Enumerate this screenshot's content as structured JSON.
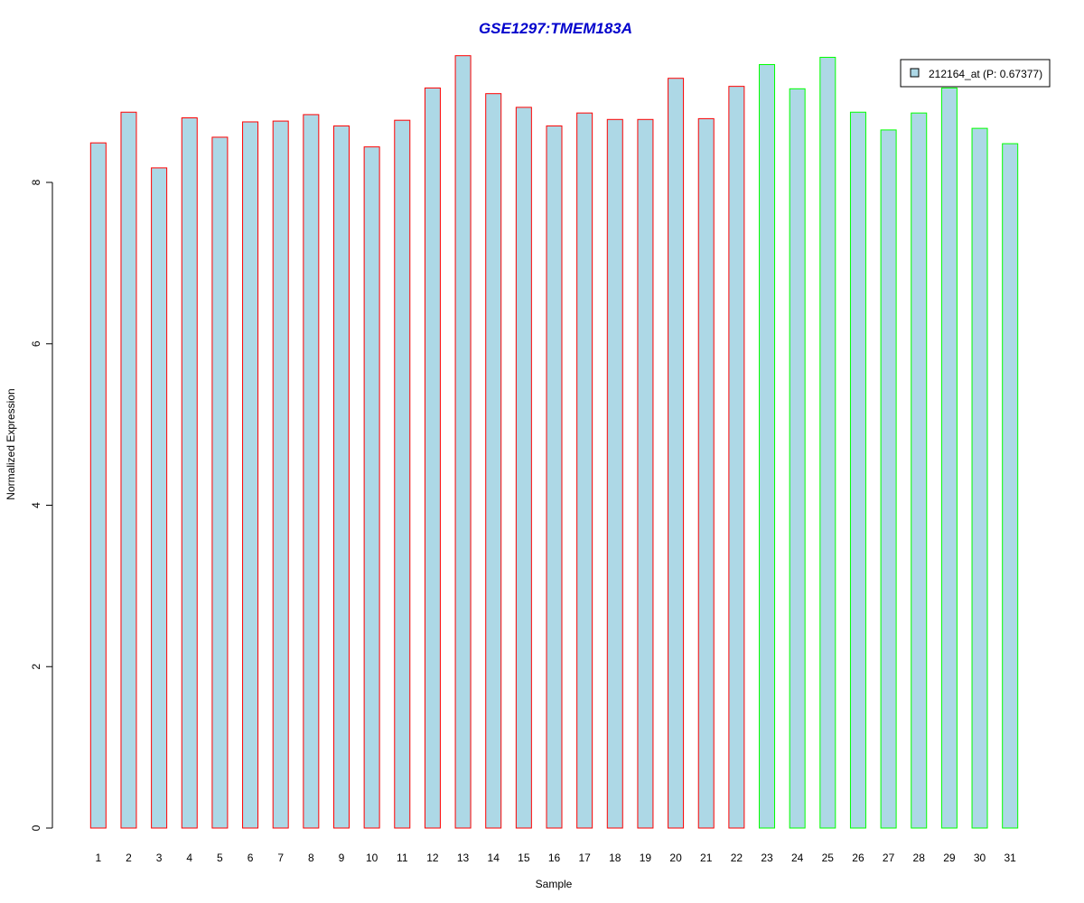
{
  "chart_data": {
    "type": "bar",
    "title": "GSE1297:TMEM183A",
    "xlabel": "Sample",
    "ylabel": "Normalized Expression",
    "ylim": [
      0,
      9.6
    ],
    "yticks": [
      0,
      2,
      4,
      6,
      8
    ],
    "grid": false,
    "legend": {
      "position": "top-right",
      "entries": [
        {
          "label": "212164_at (P: 0.67377)",
          "color": "#add8e6"
        }
      ]
    },
    "categories": [
      "1",
      "2",
      "3",
      "4",
      "5",
      "6",
      "7",
      "8",
      "9",
      "10",
      "11",
      "12",
      "13",
      "14",
      "15",
      "16",
      "17",
      "18",
      "19",
      "20",
      "21",
      "22",
      "23",
      "24",
      "25",
      "26",
      "27",
      "28",
      "29",
      "30",
      "31"
    ],
    "series": [
      {
        "name": "212164_at (P: 0.67377)",
        "values": [
          8.49,
          8.87,
          8.18,
          8.8,
          8.56,
          8.75,
          8.76,
          8.84,
          8.7,
          8.44,
          8.77,
          9.17,
          9.57,
          9.1,
          8.93,
          8.7,
          8.86,
          8.78,
          8.78,
          9.29,
          8.79,
          9.19,
          9.46,
          9.16,
          9.55,
          8.87,
          8.65,
          8.86,
          9.17,
          8.67,
          8.48
        ]
      }
    ],
    "bar_fill": "#add8e6",
    "group_colors": [
      "#ff0000",
      "#00ff00"
    ],
    "groups": [
      1,
      1,
      1,
      1,
      1,
      1,
      1,
      1,
      1,
      1,
      1,
      1,
      1,
      1,
      1,
      1,
      1,
      1,
      1,
      1,
      1,
      1,
      2,
      2,
      2,
      2,
      2,
      2,
      2,
      2,
      2
    ],
    "title_color": "#0000cc"
  }
}
